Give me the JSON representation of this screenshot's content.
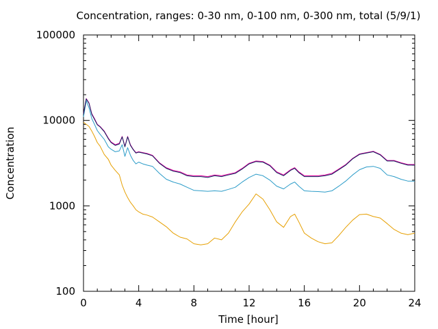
{
  "chart_data": {
    "type": "line",
    "title": "Concentration, ranges: 0-30 nm, 0-100 nm, 0-300 nm, total (5/9/1)",
    "xlabel": "Time [hour]",
    "ylabel": "Concentration",
    "xlim": [
      0,
      24
    ],
    "ylim": [
      100,
      100000
    ],
    "yscale": "log",
    "grid": false,
    "legend": "none",
    "xticks": [
      0,
      4,
      8,
      12,
      16,
      20,
      24
    ],
    "xtick_labels": [
      "0",
      "4",
      "8",
      "12",
      "16",
      "20",
      "24"
    ],
    "yticks": [
      100,
      1000,
      10000,
      100000
    ],
    "ytick_labels": [
      "100",
      "1000",
      "10000",
      "100000"
    ],
    "x": [
      0,
      0.2,
      0.4,
      0.6,
      0.8,
      1.0,
      1.2,
      1.5,
      1.8,
      2.0,
      2.3,
      2.6,
      2.8,
      3.0,
      3.2,
      3.4,
      3.6,
      3.8,
      4.0,
      4.3,
      4.6,
      5.0,
      5.5,
      6.0,
      6.5,
      7.0,
      7.5,
      8.0,
      8.5,
      9.0,
      9.5,
      10.0,
      10.5,
      11.0,
      11.5,
      12.0,
      12.5,
      13.0,
      13.5,
      14.0,
      14.5,
      15.0,
      15.3,
      15.6,
      16.0,
      16.5,
      17.0,
      17.5,
      18.0,
      18.5,
      19.0,
      19.5,
      20.0,
      20.5,
      21.0,
      21.5,
      22.0,
      22.5,
      23.0,
      23.5,
      24.0
    ],
    "series": [
      {
        "color": "#e5009c",
        "values": [
          12000,
          18000,
          16000,
          12000,
          10500,
          9000,
          8500,
          7500,
          6200,
          5600,
          5200,
          5400,
          6500,
          5000,
          6500,
          5200,
          4600,
          4200,
          4300,
          4200,
          4100,
          3900,
          3200,
          2800,
          2600,
          2500,
          2300,
          2250,
          2250,
          2200,
          2300,
          2250,
          2350,
          2450,
          2750,
          3150,
          3350,
          3300,
          3000,
          2500,
          2300,
          2650,
          2800,
          2500,
          2250,
          2250,
          2250,
          2300,
          2400,
          2700,
          3050,
          3600,
          4050,
          4200,
          4350,
          4000,
          3400,
          3400,
          3200,
          3050,
          3050
        ]
      },
      {
        "color": "#0b1f5c",
        "values": [
          11800,
          17800,
          15800,
          11800,
          10300,
          8900,
          8400,
          7400,
          6100,
          5500,
          5100,
          5300,
          6400,
          4900,
          6400,
          5100,
          4550,
          4150,
          4250,
          4150,
          4050,
          3850,
          3150,
          2750,
          2550,
          2450,
          2250,
          2200,
          2200,
          2150,
          2250,
          2200,
          2300,
          2400,
          2700,
          3100,
          3300,
          3250,
          2950,
          2450,
          2250,
          2600,
          2750,
          2450,
          2200,
          2200,
          2200,
          2250,
          2350,
          2650,
          3000,
          3550,
          4000,
          4150,
          4300,
          3950,
          3350,
          3350,
          3150,
          3000,
          3000
        ]
      },
      {
        "color": "#2a9bc8",
        "values": [
          11000,
          17000,
          14000,
          10500,
          9000,
          7600,
          6900,
          6000,
          4900,
          4600,
          4300,
          4400,
          5200,
          3800,
          4800,
          3900,
          3400,
          3100,
          3250,
          3100,
          3000,
          2900,
          2400,
          2050,
          1900,
          1800,
          1650,
          1520,
          1500,
          1480,
          1500,
          1480,
          1560,
          1650,
          1900,
          2150,
          2350,
          2250,
          2000,
          1700,
          1580,
          1800,
          1900,
          1700,
          1500,
          1480,
          1470,
          1450,
          1500,
          1700,
          1950,
          2300,
          2650,
          2850,
          2900,
          2750,
          2300,
          2200,
          2050,
          1950,
          1950
        ]
      },
      {
        "color": "#e69f00",
        "values": [
          9500,
          9000,
          8500,
          7500,
          6500,
          5500,
          5000,
          4000,
          3500,
          3000,
          2600,
          2300,
          1750,
          1450,
          1250,
          1100,
          1000,
          900,
          850,
          800,
          780,
          740,
          650,
          570,
          480,
          430,
          410,
          360,
          350,
          360,
          420,
          400,
          480,
          650,
          850,
          1050,
          1380,
          1200,
          900,
          650,
          560,
          750,
          800,
          650,
          480,
          420,
          380,
          360,
          370,
          450,
          560,
          680,
          790,
          800,
          750,
          720,
          620,
          530,
          480,
          460,
          480
        ]
      }
    ]
  }
}
